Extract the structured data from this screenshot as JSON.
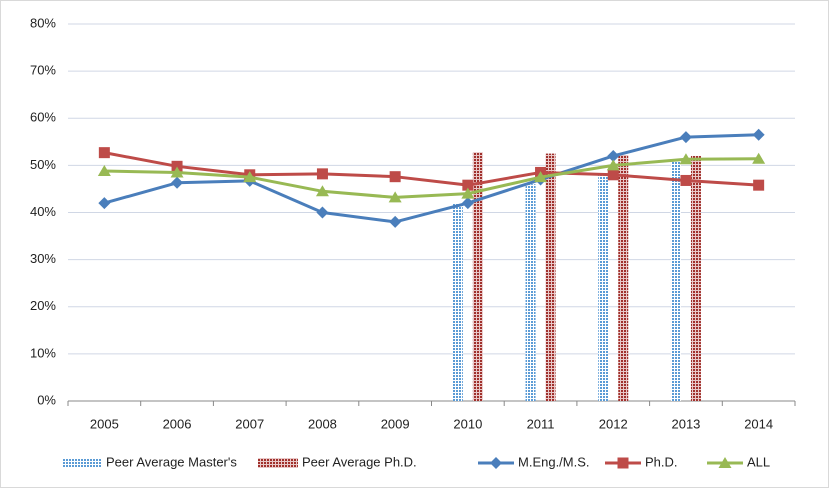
{
  "chart_data": {
    "type": "line",
    "categories": [
      "2005",
      "2006",
      "2007",
      "2008",
      "2009",
      "2010",
      "2011",
      "2012",
      "2013",
      "2014"
    ],
    "series": [
      {
        "name": "Peer Average Master's",
        "type": "bar",
        "color": "#5b9bd5",
        "values": [
          null,
          null,
          null,
          null,
          null,
          42,
          46,
          48,
          51,
          null
        ]
      },
      {
        "name": "Peer Average Ph.D.",
        "type": "bar",
        "color": "#a0302c",
        "values": [
          null,
          null,
          null,
          null,
          null,
          52.8,
          52.5,
          52.2,
          52,
          null
        ]
      },
      {
        "name": "M.Eng./M.S.",
        "type": "line",
        "marker": "diamond",
        "color": "#4a7ebb",
        "values": [
          42,
          46.3,
          46.7,
          40,
          38,
          42,
          47,
          52,
          56,
          56.5
        ]
      },
      {
        "name": "Ph.D.",
        "type": "line",
        "marker": "square",
        "color": "#be4b48",
        "values": [
          52.7,
          49.8,
          48,
          48.2,
          47.6,
          45.8,
          48.5,
          48,
          46.8,
          45.8
        ]
      },
      {
        "name": "ALL",
        "type": "line",
        "marker": "triangle",
        "color": "#98b954",
        "values": [
          48.8,
          48.5,
          47.5,
          44.5,
          43.2,
          44,
          47.5,
          50,
          51.3,
          51.4
        ]
      }
    ],
    "ylim": [
      0,
      80
    ],
    "yticks": [
      {
        "value": 0,
        "label": "0%"
      },
      {
        "value": 10,
        "label": "10%"
      },
      {
        "value": 20,
        "label": "20%"
      },
      {
        "value": 30,
        "label": "30%"
      },
      {
        "value": 40,
        "label": "40%"
      },
      {
        "value": 50,
        "label": "50%"
      },
      {
        "value": 60,
        "label": "60%"
      },
      {
        "value": 70,
        "label": "70%"
      },
      {
        "value": 80,
        "label": "80%"
      }
    ],
    "grid": true,
    "legend": "bottom"
  }
}
